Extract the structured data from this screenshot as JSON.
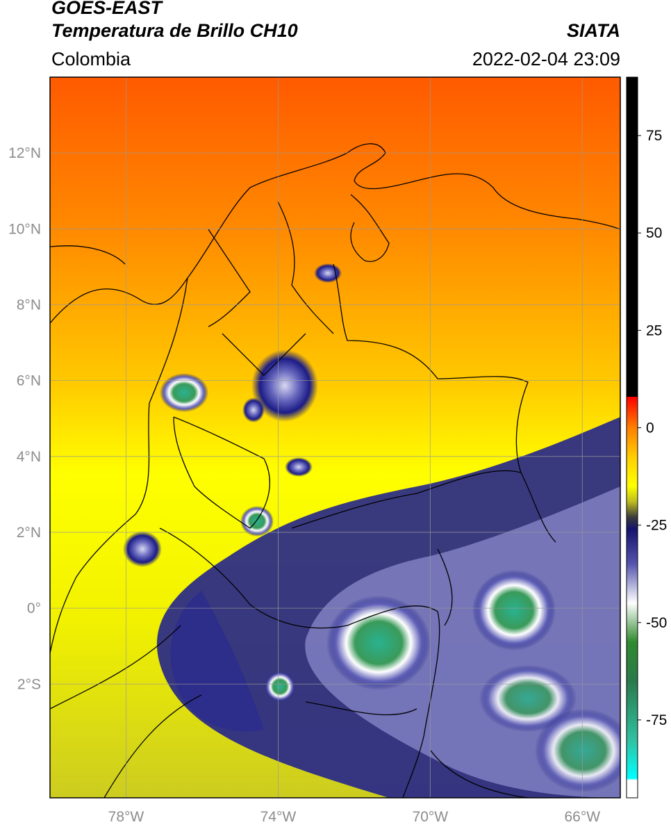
{
  "header": {
    "title_line1": "GOES-EAST",
    "title_line2": "Temperatura de Brillo CH10",
    "organization": "SIATA",
    "region": "Colombia",
    "timestamp": "2022-02-04 23:09"
  },
  "map": {
    "lon_ticks": [
      {
        "value": -78,
        "label": "78°W"
      },
      {
        "value": -74,
        "label": "74°W"
      },
      {
        "value": -70,
        "label": "70°W"
      },
      {
        "value": -66,
        "label": "66°W"
      }
    ],
    "lat_ticks": [
      {
        "value": 12,
        "label": "12°N"
      },
      {
        "value": 10,
        "label": "10°N"
      },
      {
        "value": 8,
        "label": "8°N"
      },
      {
        "value": 6,
        "label": "6°N"
      },
      {
        "value": 4,
        "label": "4°N"
      },
      {
        "value": 2,
        "label": "2°N"
      },
      {
        "value": 0,
        "label": "0°"
      },
      {
        "value": -2,
        "label": "2°S"
      }
    ],
    "lon_range": [
      -80.0,
      -65.0
    ],
    "lat_range": [
      -5.0,
      14.0
    ],
    "gridlines": true
  },
  "colorbar": {
    "ticks": [
      {
        "value": 75,
        "label": "75"
      },
      {
        "value": 50,
        "label": "50"
      },
      {
        "value": 25,
        "label": "25"
      },
      {
        "value": 0,
        "label": "0"
      },
      {
        "value": -25,
        "label": "-25"
      },
      {
        "value": -50,
        "label": "-50"
      },
      {
        "value": -75,
        "label": "-75"
      }
    ],
    "range": [
      -95,
      90
    ],
    "stops": [
      {
        "value": 90,
        "color": "#000000"
      },
      {
        "value": 8,
        "color": "#000000"
      },
      {
        "value": 7.9,
        "color": "#ff0000"
      },
      {
        "value": 0,
        "color": "#ff7f00"
      },
      {
        "value": -8,
        "color": "#ffd200"
      },
      {
        "value": -15,
        "color": "#ffff00"
      },
      {
        "value": -19,
        "color": "#bcbc20"
      },
      {
        "value": -23,
        "color": "#3a3a3a"
      },
      {
        "value": -26,
        "color": "#14146e"
      },
      {
        "value": -35,
        "color": "#5555b0"
      },
      {
        "value": -45,
        "color": "#ffffff"
      },
      {
        "value": -55,
        "color": "#2f8a2f"
      },
      {
        "value": -65,
        "color": "#2a7a4a"
      },
      {
        "value": -80,
        "color": "#30c0a0"
      },
      {
        "value": -90,
        "color": "#00ffff"
      },
      {
        "value": -90.5,
        "color": "#ffffff"
      },
      {
        "value": -95,
        "color": "#ffffff"
      }
    ]
  }
}
